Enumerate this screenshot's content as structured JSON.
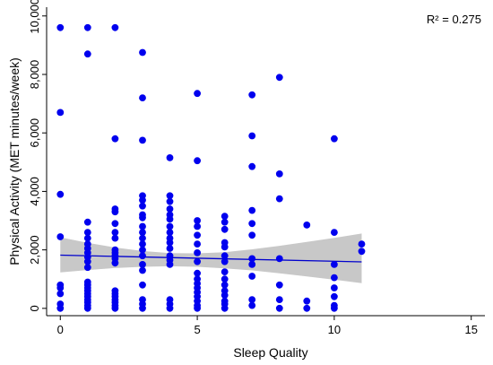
{
  "chart_data": {
    "type": "scatter",
    "title": "",
    "xlabel": "Sleep Quality",
    "ylabel": "Physical Activity (MET minutes/week)",
    "xlim": [
      -0.5,
      15.5
    ],
    "ylim": [
      -250,
      10300
    ],
    "xticks": [
      0,
      5,
      10,
      15
    ],
    "yticks": [
      0,
      2000,
      4000,
      6000,
      8000,
      10000
    ],
    "grid": false,
    "annotation": "R² = 0.275",
    "colors": {
      "points": "#0000ee",
      "fit_line": "#0000cc",
      "ci_band": "#c8c8c8"
    },
    "fit": {
      "x": [
        0,
        11
      ],
      "y": [
        1820,
        1590
      ]
    },
    "ci_band": {
      "x": [
        0,
        1,
        2,
        3,
        4,
        5,
        6,
        7,
        8,
        9,
        10,
        11
      ],
      "upper": [
        2430,
        2240,
        2080,
        1960,
        1890,
        1880,
        1920,
        2020,
        2140,
        2270,
        2410,
        2560
      ],
      "lower": [
        1230,
        1310,
        1380,
        1420,
        1440,
        1420,
        1370,
        1300,
        1200,
        1090,
        980,
        860
      ]
    },
    "points": [
      [
        0,
        9600
      ],
      [
        0,
        6700
      ],
      [
        0,
        3900
      ],
      [
        0,
        2450
      ],
      [
        0,
        800
      ],
      [
        0,
        700
      ],
      [
        0,
        500
      ],
      [
        0,
        150
      ],
      [
        0,
        0
      ],
      [
        1,
        9600
      ],
      [
        1,
        8700
      ],
      [
        1,
        2950
      ],
      [
        1,
        2600
      ],
      [
        1,
        2400
      ],
      [
        1,
        2200
      ],
      [
        1,
        2050
      ],
      [
        1,
        1900
      ],
      [
        1,
        1750
      ],
      [
        1,
        1600
      ],
      [
        1,
        1400
      ],
      [
        1,
        900
      ],
      [
        1,
        800
      ],
      [
        1,
        700
      ],
      [
        1,
        600
      ],
      [
        1,
        500
      ],
      [
        1,
        400
      ],
      [
        1,
        300
      ],
      [
        1,
        200
      ],
      [
        1,
        100
      ],
      [
        1,
        0
      ],
      [
        2,
        9600
      ],
      [
        2,
        5800
      ],
      [
        2,
        3400
      ],
      [
        2,
        3300
      ],
      [
        2,
        2900
      ],
      [
        2,
        2600
      ],
      [
        2,
        2400
      ],
      [
        2,
        2000
      ],
      [
        2,
        1900
      ],
      [
        2,
        1800
      ],
      [
        2,
        1700
      ],
      [
        2,
        1550
      ],
      [
        2,
        600
      ],
      [
        2,
        500
      ],
      [
        2,
        400
      ],
      [
        2,
        300
      ],
      [
        2,
        200
      ],
      [
        2,
        100
      ],
      [
        2,
        0
      ],
      [
        3,
        8750
      ],
      [
        3,
        7200
      ],
      [
        3,
        5750
      ],
      [
        3,
        3850
      ],
      [
        3,
        3700
      ],
      [
        3,
        3500
      ],
      [
        3,
        3200
      ],
      [
        3,
        3100
      ],
      [
        3,
        2800
      ],
      [
        3,
        2600
      ],
      [
        3,
        2400
      ],
      [
        3,
        2200
      ],
      [
        3,
        2000
      ],
      [
        3,
        1800
      ],
      [
        3,
        1500
      ],
      [
        3,
        1300
      ],
      [
        3,
        800
      ],
      [
        3,
        300
      ],
      [
        3,
        150
      ],
      [
        3,
        0
      ],
      [
        4,
        5150
      ],
      [
        4,
        3850
      ],
      [
        4,
        3650
      ],
      [
        4,
        3400
      ],
      [
        4,
        3200
      ],
      [
        4,
        3050
      ],
      [
        4,
        2800
      ],
      [
        4,
        2600
      ],
      [
        4,
        2400
      ],
      [
        4,
        2250
      ],
      [
        4,
        2050
      ],
      [
        4,
        1800
      ],
      [
        4,
        1650
      ],
      [
        4,
        1500
      ],
      [
        4,
        300
      ],
      [
        4,
        150
      ],
      [
        4,
        0
      ],
      [
        5,
        7350
      ],
      [
        5,
        5050
      ],
      [
        5,
        3000
      ],
      [
        5,
        2800
      ],
      [
        5,
        2500
      ],
      [
        5,
        2200
      ],
      [
        5,
        1900
      ],
      [
        5,
        1600
      ],
      [
        5,
        1200
      ],
      [
        5,
        1000
      ],
      [
        5,
        850
      ],
      [
        5,
        700
      ],
      [
        5,
        550
      ],
      [
        5,
        400
      ],
      [
        5,
        250
      ],
      [
        5,
        100
      ],
      [
        5,
        0
      ],
      [
        6,
        3150
      ],
      [
        6,
        2950
      ],
      [
        6,
        2700
      ],
      [
        6,
        2250
      ],
      [
        6,
        2100
      ],
      [
        6,
        1800
      ],
      [
        6,
        1600
      ],
      [
        6,
        1250
      ],
      [
        6,
        1000
      ],
      [
        6,
        800
      ],
      [
        6,
        600
      ],
      [
        6,
        450
      ],
      [
        6,
        250
      ],
      [
        6,
        150
      ],
      [
        6,
        0
      ],
      [
        7,
        7300
      ],
      [
        7,
        5900
      ],
      [
        7,
        4850
      ],
      [
        7,
        3350
      ],
      [
        7,
        2900
      ],
      [
        7,
        2500
      ],
      [
        7,
        1700
      ],
      [
        7,
        1500
      ],
      [
        7,
        1100
      ],
      [
        7,
        300
      ],
      [
        7,
        100
      ],
      [
        8,
        7900
      ],
      [
        8,
        4600
      ],
      [
        8,
        3750
      ],
      [
        8,
        1700
      ],
      [
        8,
        800
      ],
      [
        8,
        300
      ],
      [
        8,
        0
      ],
      [
        9,
        2850
      ],
      [
        9,
        250
      ],
      [
        9,
        0
      ],
      [
        10,
        5800
      ],
      [
        10,
        2600
      ],
      [
        10,
        1500
      ],
      [
        10,
        1050
      ],
      [
        10,
        700
      ],
      [
        10,
        400
      ],
      [
        10,
        100
      ],
      [
        10,
        0
      ],
      [
        11,
        2200
      ],
      [
        11,
        1950
      ]
    ]
  }
}
